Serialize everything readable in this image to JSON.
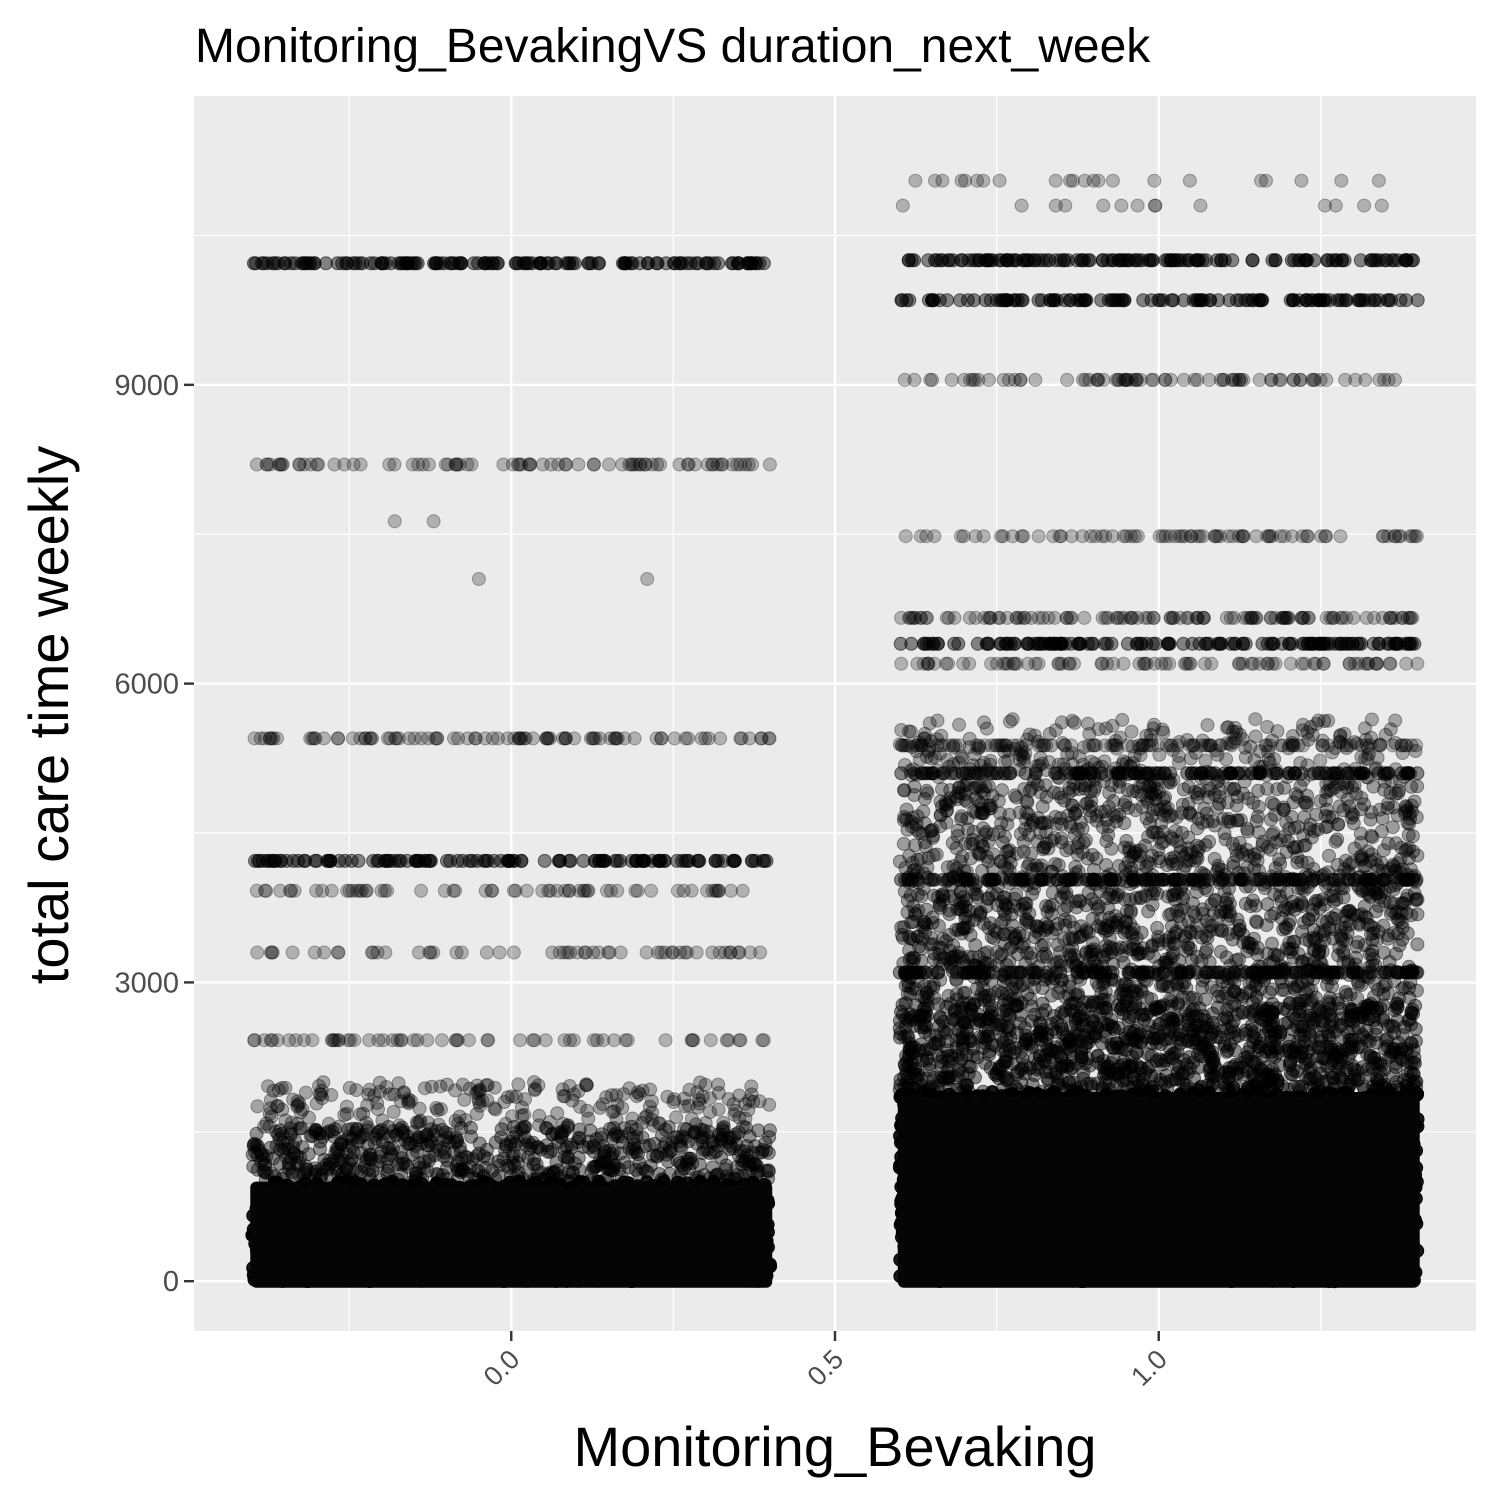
{
  "chart_data": {
    "type": "scatter",
    "title": "Monitoring_BevakingVS duration_next_week",
    "xlabel": "Monitoring_Bevaking",
    "ylabel": "total care time weekly",
    "xlim": [
      -0.49,
      1.49
    ],
    "ylim": [
      -500,
      11900
    ],
    "x_ticks": [
      0.0,
      0.5,
      1.0
    ],
    "x_tick_labels": [
      "0.0",
      "0.5",
      "1.0"
    ],
    "y_ticks": [
      0,
      3000,
      6000,
      9000
    ],
    "y_tick_labels": [
      "0",
      "3000",
      "6000",
      "9000"
    ],
    "grid": true,
    "point_color": "#000000",
    "point_alpha": 0.25,
    "panel_background": "#ebebeb",
    "grid_color": "#ffffff",
    "jitter_width": 0.4,
    "groups": [
      {
        "x": 0,
        "levels": [
          {
            "y": 10220,
            "density": 1.0
          },
          {
            "y": 8200,
            "density": 0.5
          },
          {
            "y": 5450,
            "density": 0.6
          },
          {
            "y": 4220,
            "density": 0.9
          },
          {
            "y": 3920,
            "density": 0.35
          },
          {
            "y": 3300,
            "density": 0.3
          },
          {
            "y": 2420,
            "density": 0.35
          }
        ],
        "sparse": [
          {
            "x": -0.18,
            "y": 7630
          },
          {
            "x": -0.12,
            "y": 7630
          },
          {
            "x": -0.05,
            "y": 7050
          },
          {
            "x": 0.21,
            "y": 7050
          }
        ],
        "dense_bands": [
          {
            "y_min": 0,
            "y_max": 1000,
            "opacity": 1.0
          },
          {
            "y_min": 1000,
            "y_max": 1550,
            "opacity": 0.7
          },
          {
            "y_min": 1550,
            "y_max": 2000,
            "opacity": 0.25
          }
        ]
      },
      {
        "x": 1,
        "levels": [
          {
            "y": 10250,
            "density": 1.0
          },
          {
            "y": 9850,
            "density": 0.9
          },
          {
            "y": 9050,
            "density": 0.5
          },
          {
            "y": 7480,
            "density": 0.5
          },
          {
            "y": 6660,
            "density": 0.8
          },
          {
            "y": 6400,
            "density": 1.0
          },
          {
            "y": 6200,
            "density": 0.5
          },
          {
            "y": 5380,
            "density": 0.7
          },
          {
            "y": 5100,
            "density": 0.9
          },
          {
            "y": 4030,
            "density": 1.0
          },
          {
            "y": 3100,
            "density": 1.0
          }
        ],
        "top_sparse": [
          {
            "y": 11050,
            "density": 0.3
          },
          {
            "y": 10800,
            "density": 0.1
          }
        ],
        "dense_bands": [
          {
            "y_min": 0,
            "y_max": 1900,
            "opacity": 1.0
          },
          {
            "y_min": 1900,
            "y_max": 2800,
            "opacity": 0.85
          },
          {
            "y_min": 2800,
            "y_max": 3900,
            "opacity": 0.55
          },
          {
            "y_min": 3900,
            "y_max": 5000,
            "opacity": 0.45
          },
          {
            "y_min": 5000,
            "y_max": 5650,
            "opacity": 0.25
          }
        ]
      }
    ]
  }
}
